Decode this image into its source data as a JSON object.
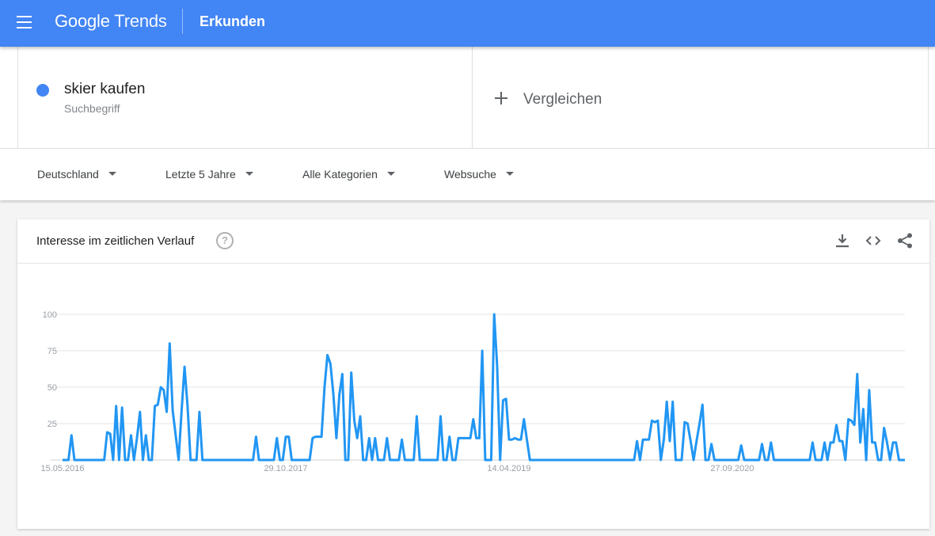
{
  "appbar": {
    "logo_google": "Google",
    "logo_trends": "Trends",
    "title": "Erkunden",
    "color": "#4285f4"
  },
  "search_terms": [
    {
      "name": "skier kaufen",
      "type": "Suchbegriff",
      "color": "#4285f4"
    }
  ],
  "compare": {
    "label": "Vergleichen"
  },
  "filters": {
    "region": "Deutschland",
    "time_range": "Letzte 5 Jahre",
    "category": "Alle Kategorien",
    "search_type": "Websuche"
  },
  "card": {
    "title": "Interesse im zeitlichen Verlauf",
    "help_icon": "help-circle-icon",
    "tools": [
      "download-icon",
      "embed-code-icon",
      "share-icon"
    ]
  },
  "chart_data": {
    "type": "line",
    "series": [
      {
        "name": "skier kaufen",
        "color": "#2196f3",
        "values": [
          0,
          0,
          0,
          17,
          0,
          0,
          0,
          0,
          0,
          0,
          0,
          0,
          0,
          0,
          0,
          19,
          18,
          0,
          37,
          0,
          36,
          0,
          0,
          17,
          0,
          15,
          33,
          0,
          17,
          0,
          0,
          37,
          38,
          50,
          48,
          33,
          80,
          34,
          17,
          0,
          34,
          64,
          37,
          0,
          0,
          0,
          33,
          0,
          0,
          0,
          0,
          0,
          0,
          0,
          0,
          0,
          0,
          0,
          0,
          0,
          0,
          0,
          0,
          0,
          0,
          16,
          0,
          0,
          0,
          0,
          0,
          0,
          15,
          0,
          0,
          16,
          16,
          0,
          0,
          0,
          0,
          0,
          0,
          0,
          15,
          16,
          16,
          16,
          50,
          72,
          66,
          45,
          15,
          45,
          59,
          0,
          0,
          60,
          27,
          15,
          30,
          0,
          0,
          15,
          0,
          15,
          0,
          0,
          0,
          15,
          0,
          0,
          0,
          0,
          14,
          0,
          0,
          0,
          0,
          30,
          0,
          0,
          0,
          0,
          0,
          0,
          0,
          30,
          0,
          0,
          16,
          0,
          0,
          15,
          15,
          15,
          15,
          15,
          28,
          15,
          15,
          75,
          0,
          0,
          0,
          100,
          65,
          0,
          41,
          42,
          14,
          14,
          15,
          14,
          14,
          28,
          14,
          0,
          0,
          0,
          0,
          0,
          0,
          0,
          0,
          0,
          0,
          0,
          0,
          0,
          0,
          0,
          0,
          0,
          0,
          0,
          0,
          0,
          0,
          0,
          0,
          0,
          0,
          0,
          0,
          0,
          0,
          0,
          0,
          0,
          0,
          0,
          0,
          13,
          0,
          14,
          14,
          14,
          27,
          26,
          27,
          0,
          14,
          40,
          13,
          40,
          0,
          0,
          0,
          26,
          25,
          13,
          0,
          13,
          25,
          38,
          0,
          0,
          11,
          0,
          0,
          0,
          0,
          0,
          0,
          0,
          0,
          0,
          10,
          0,
          0,
          0,
          0,
          0,
          0,
          11,
          0,
          0,
          12,
          0,
          0,
          0,
          0,
          0,
          0,
          0,
          0,
          0,
          0,
          0,
          0,
          0,
          12,
          0,
          0,
          0,
          12,
          0,
          12,
          12,
          24,
          13,
          13,
          0,
          28,
          27,
          24,
          59,
          12,
          35,
          0,
          48,
          12,
          12,
          0,
          0,
          22,
          12,
          0,
          12,
          12,
          0,
          0,
          0
        ],
        "line_width": 3
      }
    ],
    "x_ticks": [
      "15.05.2016",
      "29.10.2017",
      "14.04.2019",
      "27.09.2020"
    ],
    "x_tick_indices": [
      0,
      75,
      150,
      225
    ],
    "y_ticks": [
      100,
      75,
      50,
      25
    ],
    "ylim": [
      0,
      100
    ],
    "grid": true
  }
}
